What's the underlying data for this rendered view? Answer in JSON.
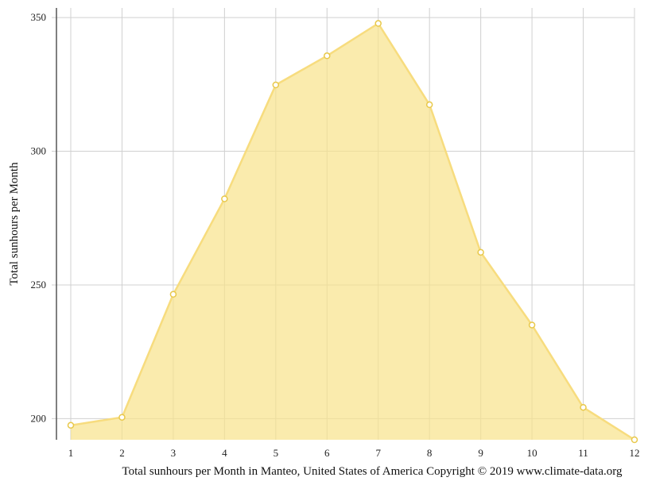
{
  "chart_data": {
    "type": "area",
    "categories": [
      "1",
      "2",
      "3",
      "4",
      "5",
      "6",
      "7",
      "8",
      "9",
      "10",
      "11",
      "12"
    ],
    "series": [
      {
        "values": [
          197.5,
          200.5,
          246.5,
          282.2,
          324.8,
          335.7,
          347.8,
          317.4,
          262.2,
          235.0,
          204.2,
          192.1
        ]
      }
    ],
    "ylabel": "Total sunhours per Month",
    "xlabel": "Total sunhours per Month in Manteo, United States of America Copyright © 2019 www.climate-data.org",
    "yticks": [
      200,
      250,
      300,
      350
    ],
    "ylim": [
      192.1,
      353
    ],
    "grid": true,
    "colors": {
      "fill": "#f8e28a",
      "line": "#f7dc7e",
      "point_stroke": "#e8c84a"
    }
  }
}
